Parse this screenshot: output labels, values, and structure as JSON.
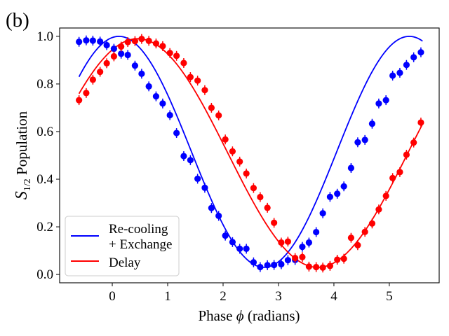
{
  "chart_data": {
    "type": "scatter",
    "panel_label": "(b)",
    "title": "",
    "xlabel_prefix": "Phase ",
    "xlabel_symbol": "ϕ",
    "xlabel_suffix": " (radians)",
    "ylabel_main": "S",
    "ylabel_sub": "1/2",
    "ylabel_rest": " Population",
    "xlim": [
      -0.95,
      5.9
    ],
    "ylim": [
      -0.035,
      1.035
    ],
    "xticks": [
      0,
      1,
      2,
      3,
      4,
      5
    ],
    "xtick_labels": [
      "0",
      "1",
      "2",
      "3",
      "4",
      "5"
    ],
    "yticks": [
      0.0,
      0.2,
      0.4,
      0.6,
      0.8,
      1.0
    ],
    "ytick_labels": [
      "0.0",
      "0.2",
      "0.4",
      "0.6",
      "0.8",
      "1.0"
    ],
    "grid": false,
    "legend_position": "lower-left",
    "series": [
      {
        "name": "Re-cooling + Exchange",
        "legend_lines": [
          "Re-cooling",
          "+ Exchange"
        ],
        "color": "#0000ff",
        "x": [
          -0.6,
          -0.47,
          -0.35,
          -0.22,
          -0.1,
          0.03,
          0.16,
          0.28,
          0.41,
          0.53,
          0.66,
          0.79,
          0.91,
          1.04,
          1.16,
          1.29,
          1.41,
          1.54,
          1.67,
          1.79,
          1.92,
          2.04,
          2.17,
          2.3,
          2.42,
          2.55,
          2.67,
          2.8,
          2.92,
          3.05,
          3.17,
          3.3,
          3.43,
          3.55,
          3.68,
          3.8,
          3.93,
          4.06,
          4.18,
          4.31,
          4.43,
          4.56,
          4.69,
          4.81,
          4.94,
          5.06,
          5.19,
          5.31,
          5.44,
          5.57
        ],
        "y": [
          0.977,
          0.983,
          0.982,
          0.978,
          0.963,
          0.948,
          0.927,
          0.922,
          0.877,
          0.843,
          0.79,
          0.748,
          0.718,
          0.669,
          0.594,
          0.497,
          0.48,
          0.402,
          0.364,
          0.279,
          0.246,
          0.163,
          0.136,
          0.108,
          0.108,
          0.051,
          0.031,
          0.039,
          0.04,
          0.043,
          0.06,
          0.061,
          0.116,
          0.134,
          0.178,
          0.257,
          0.326,
          0.339,
          0.37,
          0.447,
          0.555,
          0.565,
          0.633,
          0.718,
          0.732,
          0.835,
          0.847,
          0.88,
          0.912,
          0.933
        ]
      },
      {
        "name": "Delay",
        "legend_lines": [
          "Delay"
        ],
        "color": "#ff0000",
        "x": [
          -0.6,
          -0.47,
          -0.35,
          -0.22,
          -0.1,
          0.03,
          0.16,
          0.28,
          0.41,
          0.53,
          0.66,
          0.79,
          0.91,
          1.04,
          1.16,
          1.29,
          1.41,
          1.54,
          1.67,
          1.79,
          1.92,
          2.04,
          2.17,
          2.3,
          2.42,
          2.55,
          2.67,
          2.8,
          2.92,
          3.05,
          3.17,
          3.3,
          3.43,
          3.55,
          3.68,
          3.8,
          3.93,
          4.06,
          4.18,
          4.31,
          4.43,
          4.56,
          4.69,
          4.81,
          4.94,
          5.06,
          5.19,
          5.31,
          5.44,
          5.57
        ],
        "y": [
          0.732,
          0.762,
          0.818,
          0.851,
          0.887,
          0.916,
          0.957,
          0.976,
          0.98,
          0.989,
          0.981,
          0.97,
          0.959,
          0.93,
          0.918,
          0.888,
          0.829,
          0.814,
          0.774,
          0.7,
          0.668,
          0.567,
          0.517,
          0.474,
          0.424,
          0.363,
          0.325,
          0.28,
          0.217,
          0.134,
          0.138,
          0.069,
          0.073,
          0.033,
          0.031,
          0.029,
          0.036,
          0.062,
          0.066,
          0.154,
          0.123,
          0.179,
          0.214,
          0.273,
          0.33,
          0.405,
          0.43,
          0.503,
          0.554,
          0.638
        ]
      }
    ],
    "fits": [
      {
        "name": "Re-cooling + Exchange fit",
        "color": "#0000ff",
        "offset": 0.515,
        "amplitude": 0.485,
        "phase_center": 0.12,
        "period": 5.24,
        "x_range": [
          -0.6,
          5.6
        ]
      },
      {
        "name": "Delay fit",
        "color": "#ff0000",
        "offset": 0.51,
        "amplitude": 0.48,
        "phase_center": 0.46,
        "period": 6.5,
        "x_range": [
          -0.6,
          5.6
        ]
      }
    ]
  }
}
